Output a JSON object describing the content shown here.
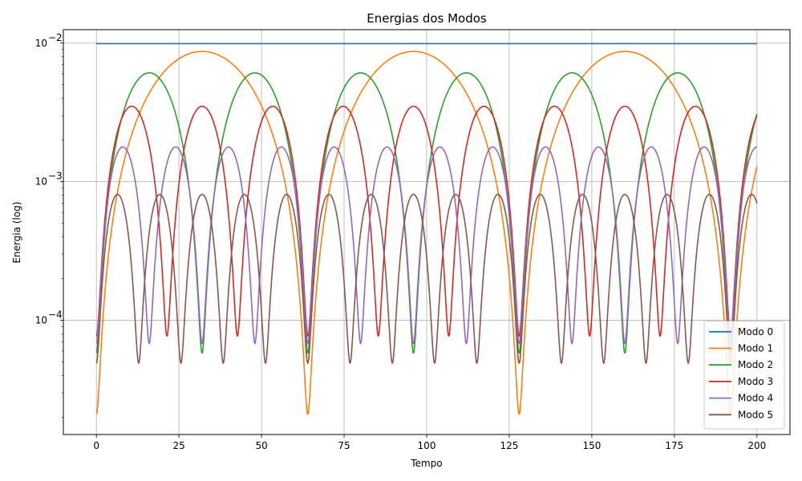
{
  "chart_data": {
    "type": "line",
    "title": "Energias dos Modos",
    "xlabel": "Tempo",
    "ylabel": "Energia (log)",
    "yscale": "log",
    "xlim": [
      -10,
      210
    ],
    "ylim": [
      1.5e-05,
      0.0125
    ],
    "xticks": [
      0,
      25,
      50,
      75,
      100,
      125,
      150,
      175,
      200
    ],
    "yticks": [
      {
        "value": 0.0001,
        "base": "10",
        "exp": "−4"
      },
      {
        "value": 0.001,
        "base": "10",
        "exp": "−3"
      },
      {
        "value": 0.01,
        "base": "10",
        "exp": "−2"
      }
    ],
    "grid": true,
    "legend_position": "lower right",
    "x_range": [
      0,
      200
    ],
    "series": [
      {
        "name": "Modo 0",
        "color": "#1f77b4",
        "kind": "constant",
        "value": 0.0099
      },
      {
        "name": "Modo 1",
        "color": "#ff7f0e",
        "kind": "oscillation",
        "max": 0.0087,
        "min": 2.1e-05,
        "first_min": 32,
        "period": 64
      },
      {
        "name": "Modo 2",
        "color": "#2ca02c",
        "kind": "oscillation",
        "max": 0.0061,
        "min": 5.8e-05,
        "first_min": 16,
        "period": 32
      },
      {
        "name": "Modo 3",
        "color": "#d62728",
        "kind": "oscillation",
        "max": 0.0035,
        "min": 7.7e-05,
        "first_min": 10.7,
        "period": 21.33
      },
      {
        "name": "Modo 4",
        "color": "#9467bd",
        "kind": "oscillation",
        "max": 0.00178,
        "min": 6.8e-05,
        "first_min": 8,
        "period": 16
      },
      {
        "name": "Modo 5",
        "color": "#8c564b",
        "kind": "oscillation",
        "max": 0.00081,
        "min": 4.9e-05,
        "first_min": 6.4,
        "period": 12.8
      }
    ]
  }
}
